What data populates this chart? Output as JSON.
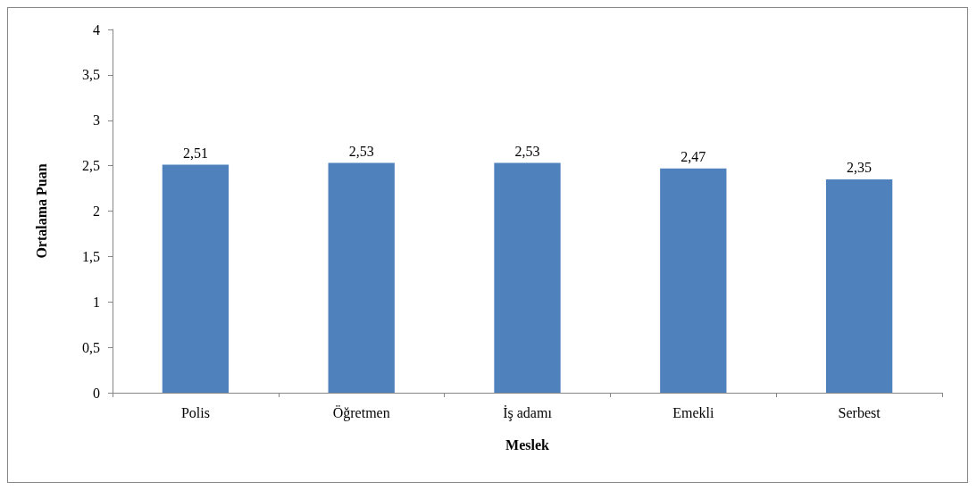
{
  "chart_data": {
    "type": "bar",
    "xlabel": "Meslek",
    "ylabel": "Ortalama Puan",
    "categories": [
      "Polis",
      "Öğretmen",
      "İş adamı",
      "Emekli",
      "Serbest"
    ],
    "values": [
      2.51,
      2.53,
      2.53,
      2.47,
      2.35
    ],
    "value_labels": [
      "2,51",
      "2,53",
      "2,53",
      "2,47",
      "2,35"
    ],
    "color": "#4f81bd",
    "ylim": [
      0,
      4
    ],
    "yticks": [
      0,
      {
        "value": 0.5,
        "label": "0,5"
      },
      1,
      {
        "value": 1.5,
        "label": "1,5"
      },
      2,
      {
        "value": 2.5,
        "label": "2,5"
      },
      3,
      {
        "value": 3.5,
        "label": "3,5"
      },
      4
    ],
    "grid": false
  }
}
